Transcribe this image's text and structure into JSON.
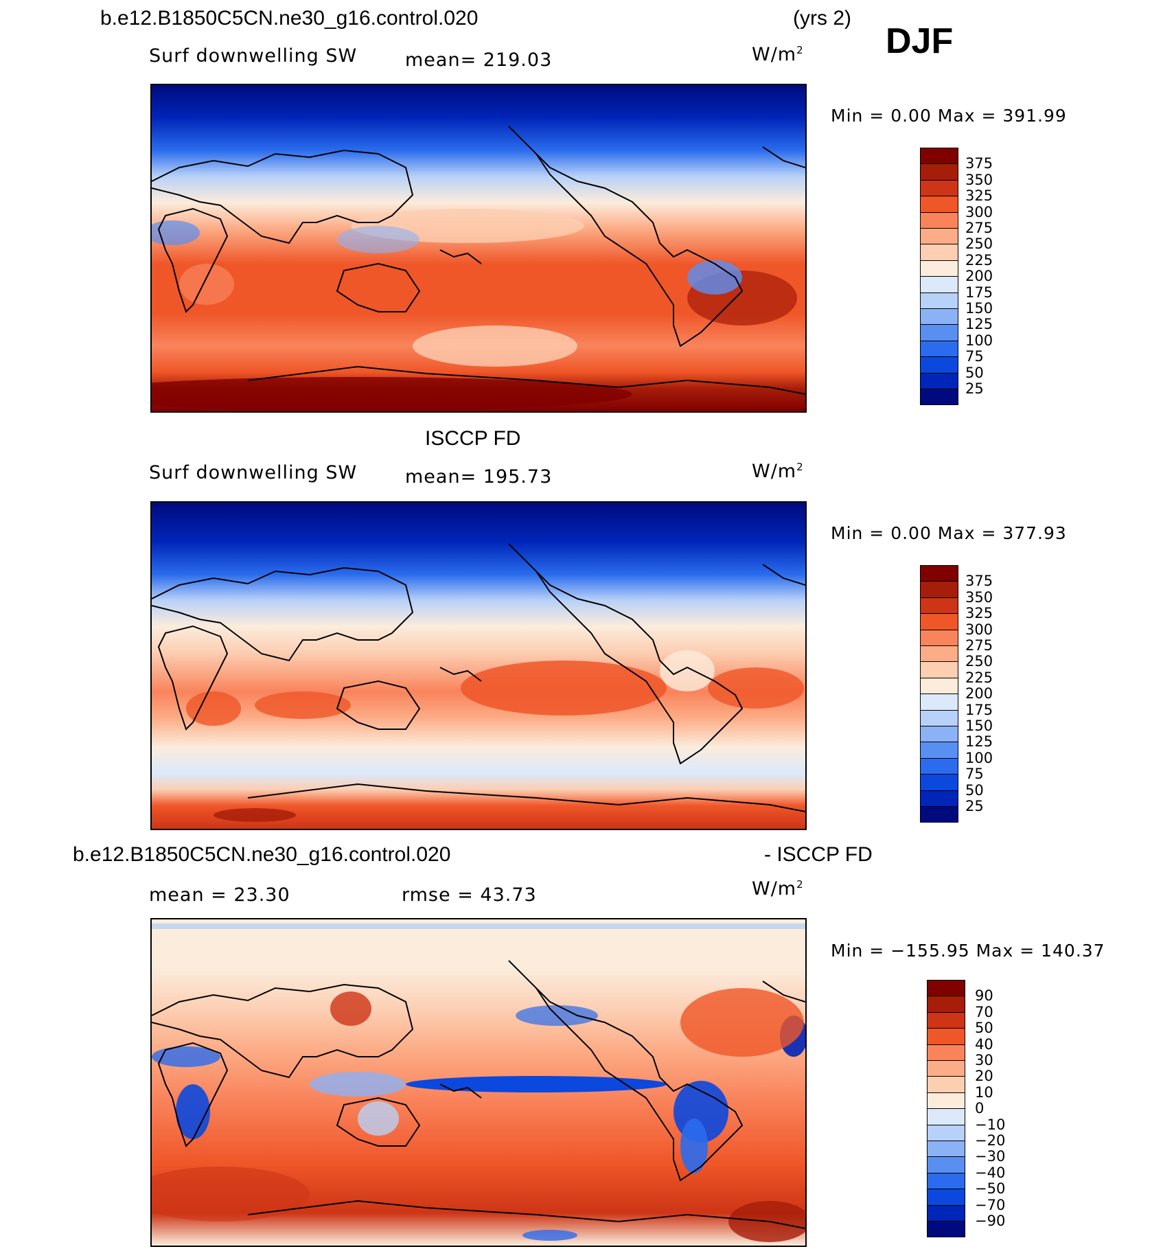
{
  "case_name": "b.e12.B1850C5CN.ne30_g16.control.020",
  "years_label": "(yrs 2)",
  "season": "DJF",
  "units_label": "W/m",
  "units_sup": "2",
  "panels": [
    {
      "variable": "Surf downwelling SW",
      "stat1": "mean= 219.03",
      "minmax": "Min =     0.00  Max  =  391.99"
    },
    {
      "title": "ISCCP FD",
      "variable": "Surf downwelling SW",
      "stat1": "mean= 195.73",
      "minmax": "Min =     0.00  Max  =  377.93"
    },
    {
      "title_left": "b.e12.B1850C5CN.ne30_g16.control.020",
      "title_right": "- ISCCP FD",
      "stat1": "mean  =    23.30",
      "stat2": "rmse  =    43.73",
      "minmax": "Min  =  −155.95  Max  =  140.37"
    }
  ],
  "chart_data": [
    {
      "type": "heatmap",
      "title": "b.e12.B1850C5CN.ne30_g16.control.020 (yrs 2) DJF — Surf downwelling SW",
      "units": "W/m2",
      "mean": 219.03,
      "min": 0.0,
      "max": 391.99,
      "colorbar_levels": [
        25,
        50,
        75,
        100,
        125,
        150,
        175,
        200,
        225,
        250,
        275,
        300,
        325,
        350,
        375
      ],
      "colorbar_colors": [
        "#000a7f",
        "#0025b8",
        "#0b48de",
        "#2a6ced",
        "#5a8ff2",
        "#8cb2f6",
        "#b8d1f8",
        "#dbe9fb",
        "#fbecdc",
        "#fcceb2",
        "#fcac86",
        "#f9845c",
        "#ef5628",
        "#cd3516",
        "#a61d09",
        "#800000"
      ]
    },
    {
      "type": "heatmap",
      "title": "ISCCP FD — Surf downwelling SW",
      "units": "W/m2",
      "mean": 195.73,
      "min": 0.0,
      "max": 377.93,
      "colorbar_levels": [
        25,
        50,
        75,
        100,
        125,
        150,
        175,
        200,
        225,
        250,
        275,
        300,
        325,
        350,
        375
      ],
      "colorbar_colors": [
        "#000a7f",
        "#0025b8",
        "#0b48de",
        "#2a6ced",
        "#5a8ff2",
        "#8cb2f6",
        "#b8d1f8",
        "#dbe9fb",
        "#fbecdc",
        "#fcceb2",
        "#fcac86",
        "#f9845c",
        "#ef5628",
        "#cd3516",
        "#a61d09",
        "#800000"
      ]
    },
    {
      "type": "heatmap",
      "title": "b.e12.B1850C5CN.ne30_g16.control.020 - ISCCP FD",
      "units": "W/m2",
      "mean": 23.3,
      "rmse": 43.73,
      "min": -155.95,
      "max": 140.37,
      "colorbar_labels": [
        "90",
        "70",
        "50",
        "40",
        "30",
        "20",
        "10",
        "0",
        "−10",
        "−20",
        "−30",
        "−40",
        "−50",
        "−70",
        "−90"
      ],
      "colorbar_colors": [
        "#800000",
        "#a61d09",
        "#cd3516",
        "#ef5628",
        "#f9845c",
        "#fcac86",
        "#fcceb2",
        "#fbecdc",
        "#dbe9fb",
        "#b8d1f8",
        "#8cb2f6",
        "#5a8ff2",
        "#2a6ced",
        "#0b48de",
        "#0025b8",
        "#000a7f"
      ]
    }
  ]
}
